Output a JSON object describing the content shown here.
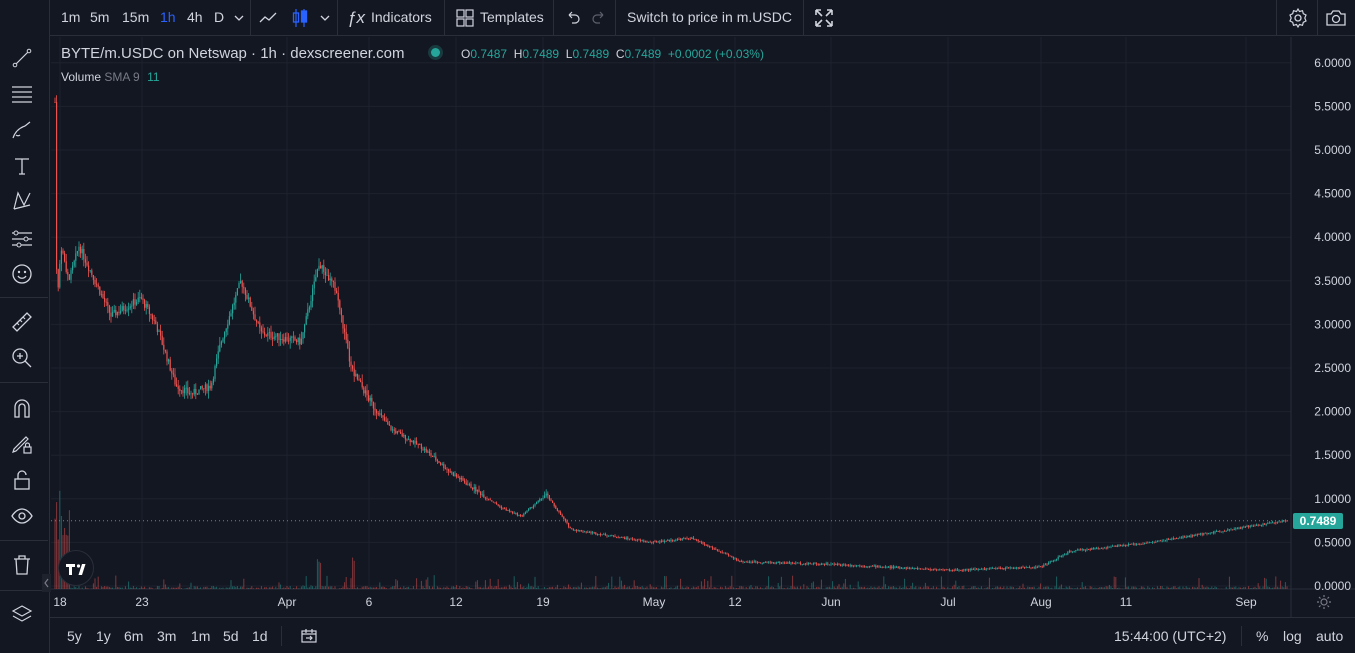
{
  "toolbar": {
    "intervals": [
      "1m",
      "5m",
      "15m",
      "1h",
      "4h",
      "D"
    ],
    "active_interval": "1h",
    "indicators_label": "Indicators",
    "templates_label": "Templates",
    "switch_label": "Switch to price in m.USDC"
  },
  "legend": {
    "title": "BYTE/m.USDC on Netswap · 1h · dexscreener.com",
    "ohlc": [
      {
        "k": "O",
        "v": "0.7487"
      },
      {
        "k": "H",
        "v": "0.7489"
      },
      {
        "k": "L",
        "v": "0.7489"
      },
      {
        "k": "C",
        "v": "0.7489"
      }
    ],
    "change": "+0.0002 (+0.03%)",
    "volume_label": "Volume",
    "volume_sma": "SMA 9",
    "volume_value": "11"
  },
  "bottom": {
    "ranges": [
      "5y",
      "1y",
      "6m",
      "3m",
      "1m",
      "5d",
      "1d"
    ],
    "time": "15:44:00 (UTC+2)",
    "pct": "%",
    "log": "log",
    "auto": "auto"
  },
  "colors": {
    "up": "#26a69a",
    "down": "#ef5350",
    "background": "#131722",
    "grid": "#1e222d"
  },
  "chart_data": {
    "type": "candlestick",
    "x_tick_labels": [
      "18",
      "23",
      "Apr",
      "6",
      "12",
      "19",
      "May",
      "12",
      "Jun",
      "Jul",
      "Aug",
      "11",
      "Sep"
    ],
    "y_tick_labels": [
      "6.0000",
      "5.5000",
      "5.0000",
      "4.5000",
      "4.0000",
      "3.5000",
      "3.0000",
      "2.5000",
      "2.0000",
      "1.5000",
      "1.0000",
      "0.5000",
      "0.0000"
    ],
    "ylim": [
      0,
      6.25
    ],
    "last_price": "0.7489",
    "grid": true,
    "price_path": [
      [
        "18",
        5.55
      ],
      [
        "18",
        3.2
      ],
      [
        "18",
        3.9
      ],
      [
        "18",
        3.5
      ],
      [
        "18",
        3.9
      ],
      [
        "23",
        3.1
      ],
      [
        "23",
        3.3
      ],
      [
        "23",
        3.0
      ],
      [
        "23",
        2.3
      ],
      [
        "23",
        2.2
      ],
      [
        "Apr",
        2.3
      ],
      [
        "Apr",
        2.8
      ],
      [
        "Apr",
        3.5
      ],
      [
        "Apr",
        2.9
      ],
      [
        "Apr",
        2.8
      ],
      [
        "6",
        3.7
      ],
      [
        "6",
        3.4
      ],
      [
        "6",
        2.5
      ],
      [
        "6",
        2.1
      ],
      [
        "6",
        1.8
      ],
      [
        "12",
        1.6
      ],
      [
        "12",
        1.3
      ],
      [
        "12",
        0.9
      ],
      [
        "19",
        0.8
      ],
      [
        "19",
        1.05
      ],
      [
        "19",
        0.65
      ],
      [
        "May",
        0.5
      ],
      [
        "May",
        0.55
      ],
      [
        "12",
        0.28
      ],
      [
        "Jun",
        0.25
      ],
      [
        "Jul",
        0.18
      ],
      [
        "Aug",
        0.22
      ],
      [
        "Aug",
        0.4
      ],
      [
        "11",
        0.45
      ],
      [
        "11",
        0.5
      ],
      [
        "Sep",
        0.65
      ],
      [
        "Sep",
        0.75
      ]
    ]
  }
}
